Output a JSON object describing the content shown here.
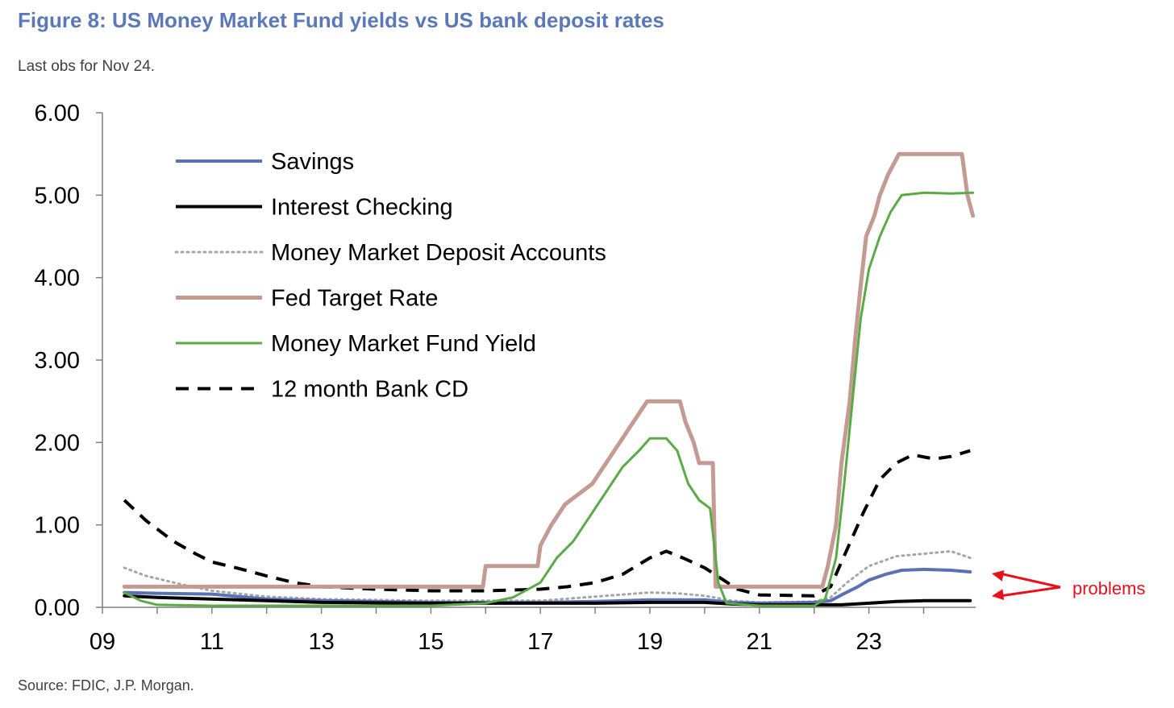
{
  "header": {
    "title": "Figure 8: US Money Market Fund yields vs US bank deposit rates",
    "subtitle": "Last obs for Nov 24."
  },
  "footer": {
    "source": "Source: FDIC, J.P. Morgan."
  },
  "chart_data": {
    "type": "line",
    "ylim": [
      0,
      6
    ],
    "xlim": [
      2009,
      2024.95
    ],
    "y_ticks": [
      "0.00",
      "1.00",
      "2.00",
      "3.00",
      "4.00",
      "5.00",
      "6.00"
    ],
    "x_ticks": [
      "09",
      "11",
      "13",
      "15",
      "17",
      "19",
      "21",
      "23"
    ],
    "grid": false,
    "legend_placement": "top-left",
    "annotation": {
      "text": "problems",
      "color": "#e8101c"
    },
    "series": [
      {
        "name": "Savings",
        "color": "#5a71b4",
        "style": "solid",
        "points": [
          [
            2009.4,
            0.18
          ],
          [
            2010,
            0.17
          ],
          [
            2011,
            0.16
          ],
          [
            2012,
            0.1
          ],
          [
            2013,
            0.08
          ],
          [
            2015,
            0.06
          ],
          [
            2017,
            0.06
          ],
          [
            2018,
            0.07
          ],
          [
            2019,
            0.09
          ],
          [
            2020,
            0.09
          ],
          [
            2020.5,
            0.06
          ],
          [
            2021,
            0.05
          ],
          [
            2022,
            0.06
          ],
          [
            2022.3,
            0.08
          ],
          [
            2022.5,
            0.15
          ],
          [
            2022.8,
            0.25
          ],
          [
            2023,
            0.33
          ],
          [
            2023.3,
            0.4
          ],
          [
            2023.6,
            0.45
          ],
          [
            2024,
            0.46
          ],
          [
            2024.5,
            0.45
          ],
          [
            2024.85,
            0.43
          ]
        ]
      },
      {
        "name": "Interest Checking",
        "color": "#000000",
        "style": "solid",
        "points": [
          [
            2009.4,
            0.14
          ],
          [
            2010,
            0.12
          ],
          [
            2011,
            0.1
          ],
          [
            2012,
            0.08
          ],
          [
            2013,
            0.06
          ],
          [
            2015,
            0.05
          ],
          [
            2017,
            0.05
          ],
          [
            2018,
            0.05
          ],
          [
            2019,
            0.06
          ],
          [
            2020,
            0.06
          ],
          [
            2020.5,
            0.04
          ],
          [
            2021,
            0.03
          ],
          [
            2022,
            0.03
          ],
          [
            2022.5,
            0.03
          ],
          [
            2023,
            0.05
          ],
          [
            2023.5,
            0.07
          ],
          [
            2024,
            0.08
          ],
          [
            2024.85,
            0.08
          ]
        ]
      },
      {
        "name": "Money Market Deposit Accounts",
        "color": "#a6a6a6",
        "style": "dotted",
        "points": [
          [
            2009.4,
            0.48
          ],
          [
            2009.8,
            0.38
          ],
          [
            2010.5,
            0.27
          ],
          [
            2011,
            0.2
          ],
          [
            2012,
            0.13
          ],
          [
            2013,
            0.1
          ],
          [
            2015,
            0.08
          ],
          [
            2017,
            0.08
          ],
          [
            2018,
            0.13
          ],
          [
            2019,
            0.18
          ],
          [
            2019.5,
            0.17
          ],
          [
            2020,
            0.14
          ],
          [
            2020.5,
            0.08
          ],
          [
            2021,
            0.06
          ],
          [
            2022,
            0.07
          ],
          [
            2022.3,
            0.12
          ],
          [
            2022.6,
            0.3
          ],
          [
            2023,
            0.5
          ],
          [
            2023.5,
            0.62
          ],
          [
            2024,
            0.65
          ],
          [
            2024.5,
            0.68
          ],
          [
            2024.85,
            0.6
          ]
        ]
      },
      {
        "name": "Fed Target Rate",
        "color": "#c49b93",
        "style": "solid",
        "points": [
          [
            2009.4,
            0.25
          ],
          [
            2015.95,
            0.25
          ],
          [
            2016,
            0.5
          ],
          [
            2016.95,
            0.5
          ],
          [
            2017,
            0.75
          ],
          [
            2017.2,
            1.0
          ],
          [
            2017.45,
            1.25
          ],
          [
            2017.95,
            1.5
          ],
          [
            2018.2,
            1.75
          ],
          [
            2018.45,
            2.0
          ],
          [
            2018.7,
            2.25
          ],
          [
            2018.95,
            2.5
          ],
          [
            2019.55,
            2.5
          ],
          [
            2019.65,
            2.25
          ],
          [
            2019.8,
            2.0
          ],
          [
            2019.9,
            1.75
          ],
          [
            2020.15,
            1.75
          ],
          [
            2020.2,
            0.25
          ],
          [
            2022.15,
            0.25
          ],
          [
            2022.25,
            0.5
          ],
          [
            2022.4,
            1.0
          ],
          [
            2022.5,
            1.75
          ],
          [
            2022.65,
            2.5
          ],
          [
            2022.75,
            3.25
          ],
          [
            2022.85,
            3.9
          ],
          [
            2022.95,
            4.5
          ],
          [
            2023.1,
            4.75
          ],
          [
            2023.2,
            5.0
          ],
          [
            2023.35,
            5.25
          ],
          [
            2023.55,
            5.5
          ],
          [
            2024.7,
            5.5
          ],
          [
            2024.8,
            5.0
          ],
          [
            2024.9,
            4.75
          ]
        ]
      },
      {
        "name": "Money Market Fund Yield",
        "color": "#5aaa46",
        "style": "solid",
        "points": [
          [
            2009.4,
            0.18
          ],
          [
            2009.7,
            0.08
          ],
          [
            2010,
            0.03
          ],
          [
            2011,
            0.02
          ],
          [
            2013,
            0.02
          ],
          [
            2015,
            0.02
          ],
          [
            2016,
            0.05
          ],
          [
            2016.5,
            0.12
          ],
          [
            2017,
            0.3
          ],
          [
            2017.3,
            0.6
          ],
          [
            2017.6,
            0.8
          ],
          [
            2017.9,
            1.1
          ],
          [
            2018.2,
            1.4
          ],
          [
            2018.5,
            1.7
          ],
          [
            2018.8,
            1.9
          ],
          [
            2019,
            2.05
          ],
          [
            2019.3,
            2.05
          ],
          [
            2019.5,
            1.9
          ],
          [
            2019.7,
            1.5
          ],
          [
            2019.9,
            1.3
          ],
          [
            2020.1,
            1.2
          ],
          [
            2020.25,
            0.3
          ],
          [
            2020.4,
            0.05
          ],
          [
            2021,
            0.02
          ],
          [
            2022,
            0.02
          ],
          [
            2022.2,
            0.1
          ],
          [
            2022.4,
            0.6
          ],
          [
            2022.55,
            1.5
          ],
          [
            2022.7,
            2.5
          ],
          [
            2022.85,
            3.5
          ],
          [
            2023,
            4.1
          ],
          [
            2023.2,
            4.5
          ],
          [
            2023.4,
            4.8
          ],
          [
            2023.6,
            5.0
          ],
          [
            2024,
            5.03
          ],
          [
            2024.5,
            5.02
          ],
          [
            2024.9,
            5.03
          ]
        ]
      },
      {
        "name": "12 month Bank CD",
        "color": "#000000",
        "style": "dashed",
        "points": [
          [
            2009.4,
            1.3
          ],
          [
            2009.8,
            1.05
          ],
          [
            2010.3,
            0.8
          ],
          [
            2010.7,
            0.65
          ],
          [
            2011,
            0.55
          ],
          [
            2011.5,
            0.47
          ],
          [
            2012,
            0.38
          ],
          [
            2012.5,
            0.3
          ],
          [
            2013,
            0.25
          ],
          [
            2014,
            0.22
          ],
          [
            2015,
            0.2
          ],
          [
            2016,
            0.2
          ],
          [
            2017,
            0.22
          ],
          [
            2017.5,
            0.25
          ],
          [
            2018,
            0.3
          ],
          [
            2018.5,
            0.4
          ],
          [
            2019,
            0.6
          ],
          [
            2019.3,
            0.68
          ],
          [
            2019.6,
            0.6
          ],
          [
            2020,
            0.48
          ],
          [
            2020.3,
            0.35
          ],
          [
            2020.6,
            0.22
          ],
          [
            2021,
            0.15
          ],
          [
            2022,
            0.14
          ],
          [
            2022.3,
            0.25
          ],
          [
            2022.6,
            0.7
          ],
          [
            2022.9,
            1.15
          ],
          [
            2023.2,
            1.55
          ],
          [
            2023.5,
            1.75
          ],
          [
            2023.8,
            1.85
          ],
          [
            2024.2,
            1.8
          ],
          [
            2024.5,
            1.83
          ],
          [
            2024.85,
            1.9
          ]
        ]
      }
    ]
  }
}
